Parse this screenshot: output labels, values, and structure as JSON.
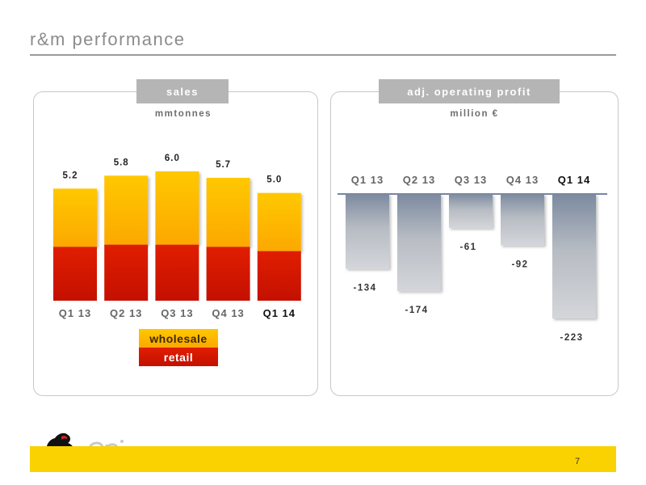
{
  "page": {
    "title": "r&m performance",
    "number": "7",
    "brand": "eni"
  },
  "colors": {
    "wholesale": "#fcb800",
    "retail": "#d91400",
    "profit_bar": "#b0b6be",
    "footer": "#fad201"
  },
  "chart_data": [
    {
      "type": "bar",
      "stacked": true,
      "title": "sales",
      "unit": "mmtonnes",
      "categories": [
        "Q1 13",
        "Q2 13",
        "Q3 13",
        "Q4 13",
        "Q1 14"
      ],
      "highlight_category": "Q1 14",
      "totals": [
        5.2,
        5.8,
        6.0,
        5.7,
        5.0
      ],
      "total_labels": [
        "5.2",
        "5.8",
        "6.0",
        "5.7",
        "5.0"
      ],
      "series": [
        {
          "name": "retail",
          "values": [
            2.5,
            2.6,
            2.6,
            2.5,
            2.3
          ]
        },
        {
          "name": "wholesale",
          "values": [
            2.7,
            3.2,
            3.4,
            3.2,
            2.7
          ]
        }
      ],
      "legend": [
        "wholesale",
        "retail"
      ],
      "ylim": [
        0,
        6.6
      ]
    },
    {
      "type": "bar",
      "title": "adj. operating profit",
      "unit": "million €",
      "categories": [
        "Q1 13",
        "Q2 13",
        "Q3 13",
        "Q4 13",
        "Q1 14"
      ],
      "highlight_category": "Q1 14",
      "values": [
        -134,
        -174,
        -61,
        -92,
        -223
      ],
      "value_labels": [
        "-134",
        "-174",
        "-61",
        "-92",
        "-223"
      ],
      "ylim": [
        -240,
        0
      ]
    }
  ]
}
